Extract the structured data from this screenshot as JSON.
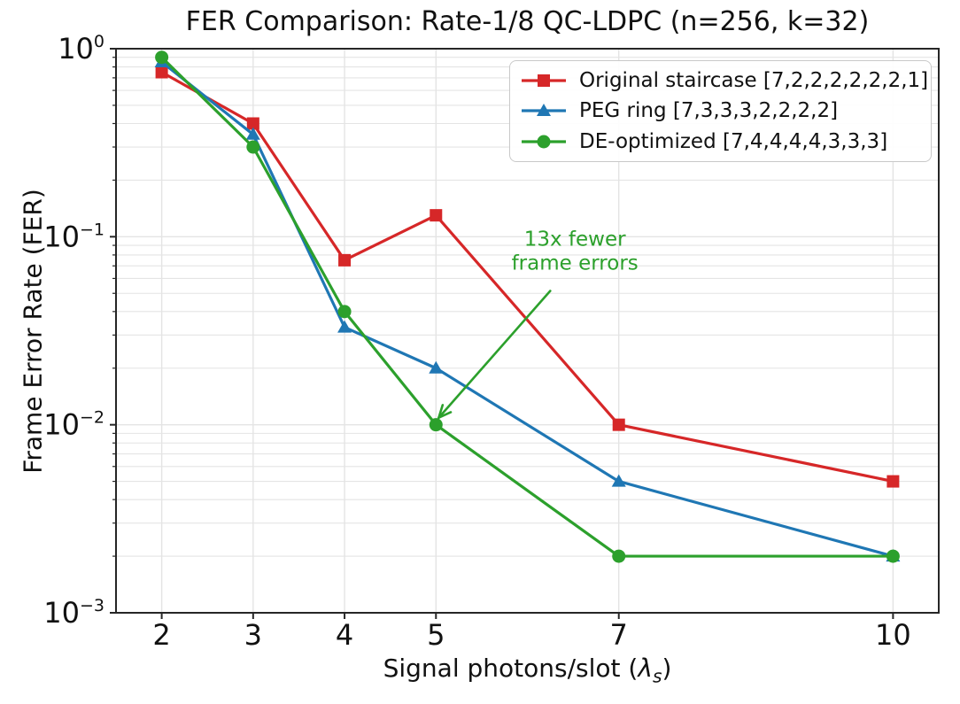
{
  "chart_data": {
    "type": "line",
    "title": "FER Comparison: Rate-1/8 QC-LDPC (n=256, k=32)",
    "xlabel": "Signal photons/slot (λ_s)",
    "xlabel_parts": {
      "prefix": "Signal photons/slot (",
      "symbol": "λ",
      "subscript": "s",
      "suffix": ")"
    },
    "ylabel": "Frame Error Rate (FER)",
    "xscale": "linear",
    "yscale": "log",
    "xlim": [
      1.5,
      10.5
    ],
    "ylim": [
      0.001,
      1.0
    ],
    "x": [
      2,
      3,
      4,
      5,
      7,
      10
    ],
    "xticks": [
      2,
      3,
      4,
      5,
      7,
      10
    ],
    "ytick_exponents": [
      0,
      -1,
      -2,
      -3
    ],
    "grid": true,
    "legend_position": "upper right",
    "series": [
      {
        "label": "Original staircase [7,2,2,2,2,2,2,1]",
        "color": "#d62728",
        "marker": "square",
        "values": [
          0.75,
          0.4,
          0.075,
          0.13,
          0.01,
          0.005
        ]
      },
      {
        "label": "PEG ring [7,3,3,3,2,2,2,2]",
        "color": "#1f77b4",
        "marker": "triangle",
        "values": [
          0.85,
          0.35,
          0.033,
          0.02,
          0.005,
          0.002
        ]
      },
      {
        "label": "DE-optimized [7,4,4,4,4,3,3,3]",
        "color": "#2ca02c",
        "marker": "circle",
        "values": [
          0.9,
          0.3,
          0.04,
          0.01,
          0.002,
          0.002
        ]
      }
    ],
    "annotation": {
      "text_lines": [
        "13x fewer",
        "frame errors"
      ],
      "color": "#2ca02c",
      "text_x": 6.52,
      "text_y": 0.0847,
      "arrow_from_x": 6.25,
      "arrow_from_y": 0.0515,
      "arrow_to_x": 5.03,
      "arrow_to_y": 0.0109
    },
    "style": {
      "spine_color": "#262626",
      "grid_color": "#e4e4e4",
      "tick_label_color": "#111111"
    }
  }
}
